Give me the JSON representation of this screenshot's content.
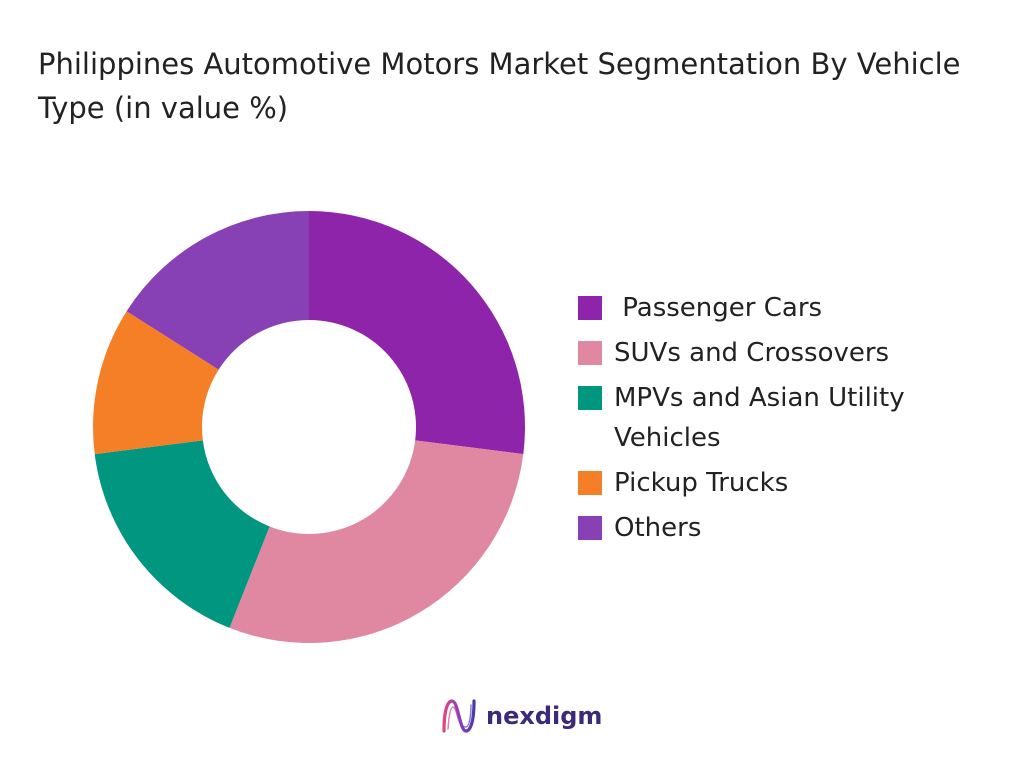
{
  "title": "Philippines Automotive Motors Market Segmentation By Vehicle Type (in value %)",
  "brand": {
    "name": "nexdigm",
    "logo_icon": "nexdigm-logo-icon"
  },
  "chart_data": {
    "type": "pie",
    "variant": "donut",
    "title": "Philippines Automotive Motors Market Segmentation By Vehicle Type (in value %)",
    "legend_position": "right",
    "categories": [
      " Passenger Cars",
      "SUVs and Crossovers",
      "MPVs and Asian Utility Vehicles",
      "Pickup Trucks",
      "Others"
    ],
    "values": [
      27,
      29,
      17,
      11,
      16
    ],
    "unit": "%",
    "colors": [
      "#8e24aa",
      "#e088a2",
      "#00967f",
      "#f57f26",
      "#8741b5"
    ]
  }
}
